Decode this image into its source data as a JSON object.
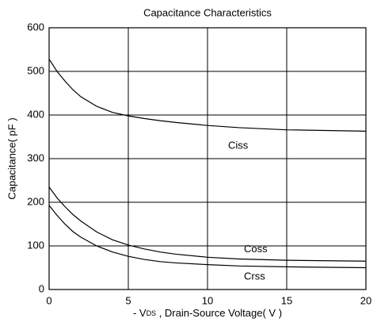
{
  "chart_data": {
    "type": "line",
    "title": "Capacitance Characteristics",
    "x_label": {
      "prefix": "- V",
      "subscript": "DS",
      "suffix": " , Drain-Source Voltage( V )"
    },
    "y_label": "Capacitance( pF )",
    "x": [
      0,
      0.5,
      1,
      1.5,
      2,
      3,
      4,
      5,
      6,
      7,
      8,
      10,
      12,
      15,
      20
    ],
    "series": [
      {
        "name": "Ciss",
        "color": "#000000",
        "values": [
          528,
          500,
          478,
          458,
          442,
          420,
          406,
          398,
          392,
          387,
          383,
          376,
          371,
          366,
          363
        ]
      },
      {
        "name": "Coss",
        "color": "#000000",
        "values": [
          235,
          210,
          190,
          172,
          157,
          132,
          114,
          102,
          93,
          86,
          81,
          74,
          70,
          67,
          65
        ]
      },
      {
        "name": "Crss",
        "color": "#000000",
        "values": [
          193,
          170,
          150,
          133,
          120,
          100,
          86,
          76,
          69,
          64,
          61,
          57,
          54,
          52,
          50
        ]
      }
    ],
    "xlim": [
      0,
      20
    ],
    "xticks": [
      0,
      5,
      10,
      15,
      20
    ],
    "ylim": [
      0,
      600
    ],
    "yticks": [
      0,
      100,
      200,
      300,
      400,
      500,
      600
    ],
    "grid": true
  }
}
